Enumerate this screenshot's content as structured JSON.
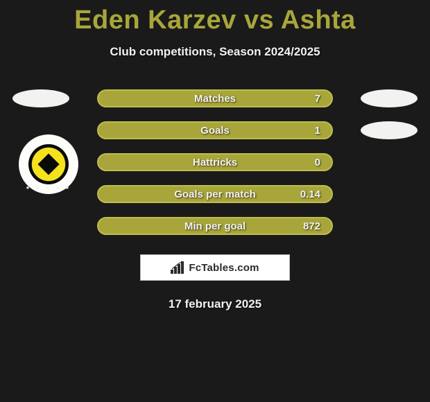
{
  "title": {
    "text": "Eden Karzev vs Ashta",
    "color": "#a8a63a"
  },
  "subtitle": {
    "text": "Club competitions, Season 2024/2025",
    "color": "#f2f2f0"
  },
  "stats": {
    "pill_bg": "#a8a63a",
    "pill_border": "#bfbd4d",
    "label_color": "#f2f2f0",
    "value_color": "#f2f2f0",
    "rows": [
      {
        "label": "Matches",
        "value": "7"
      },
      {
        "label": "Goals",
        "value": "1"
      },
      {
        "label": "Hattricks",
        "value": "0"
      },
      {
        "label": "Goals per match",
        "value": "0.14"
      },
      {
        "label": "Min per goal",
        "value": "872"
      }
    ]
  },
  "side_shapes": {
    "ellipse_color": "#f2f2f0",
    "badge_outer_bg": "#fdfdfa",
    "badge_yellow": "#f4e21e",
    "badge_black": "#0a0a0a",
    "badge_name": "team-crest"
  },
  "brand": {
    "text": "FcTables.com",
    "icon_name": "bar-chart-icon",
    "box_bg": "#ffffff",
    "box_border": "#bdbdbd",
    "text_color": "#2b2b2b"
  },
  "date": {
    "text": "17 february 2025",
    "color": "#f2f2f0"
  },
  "background": "#1a1a1a"
}
